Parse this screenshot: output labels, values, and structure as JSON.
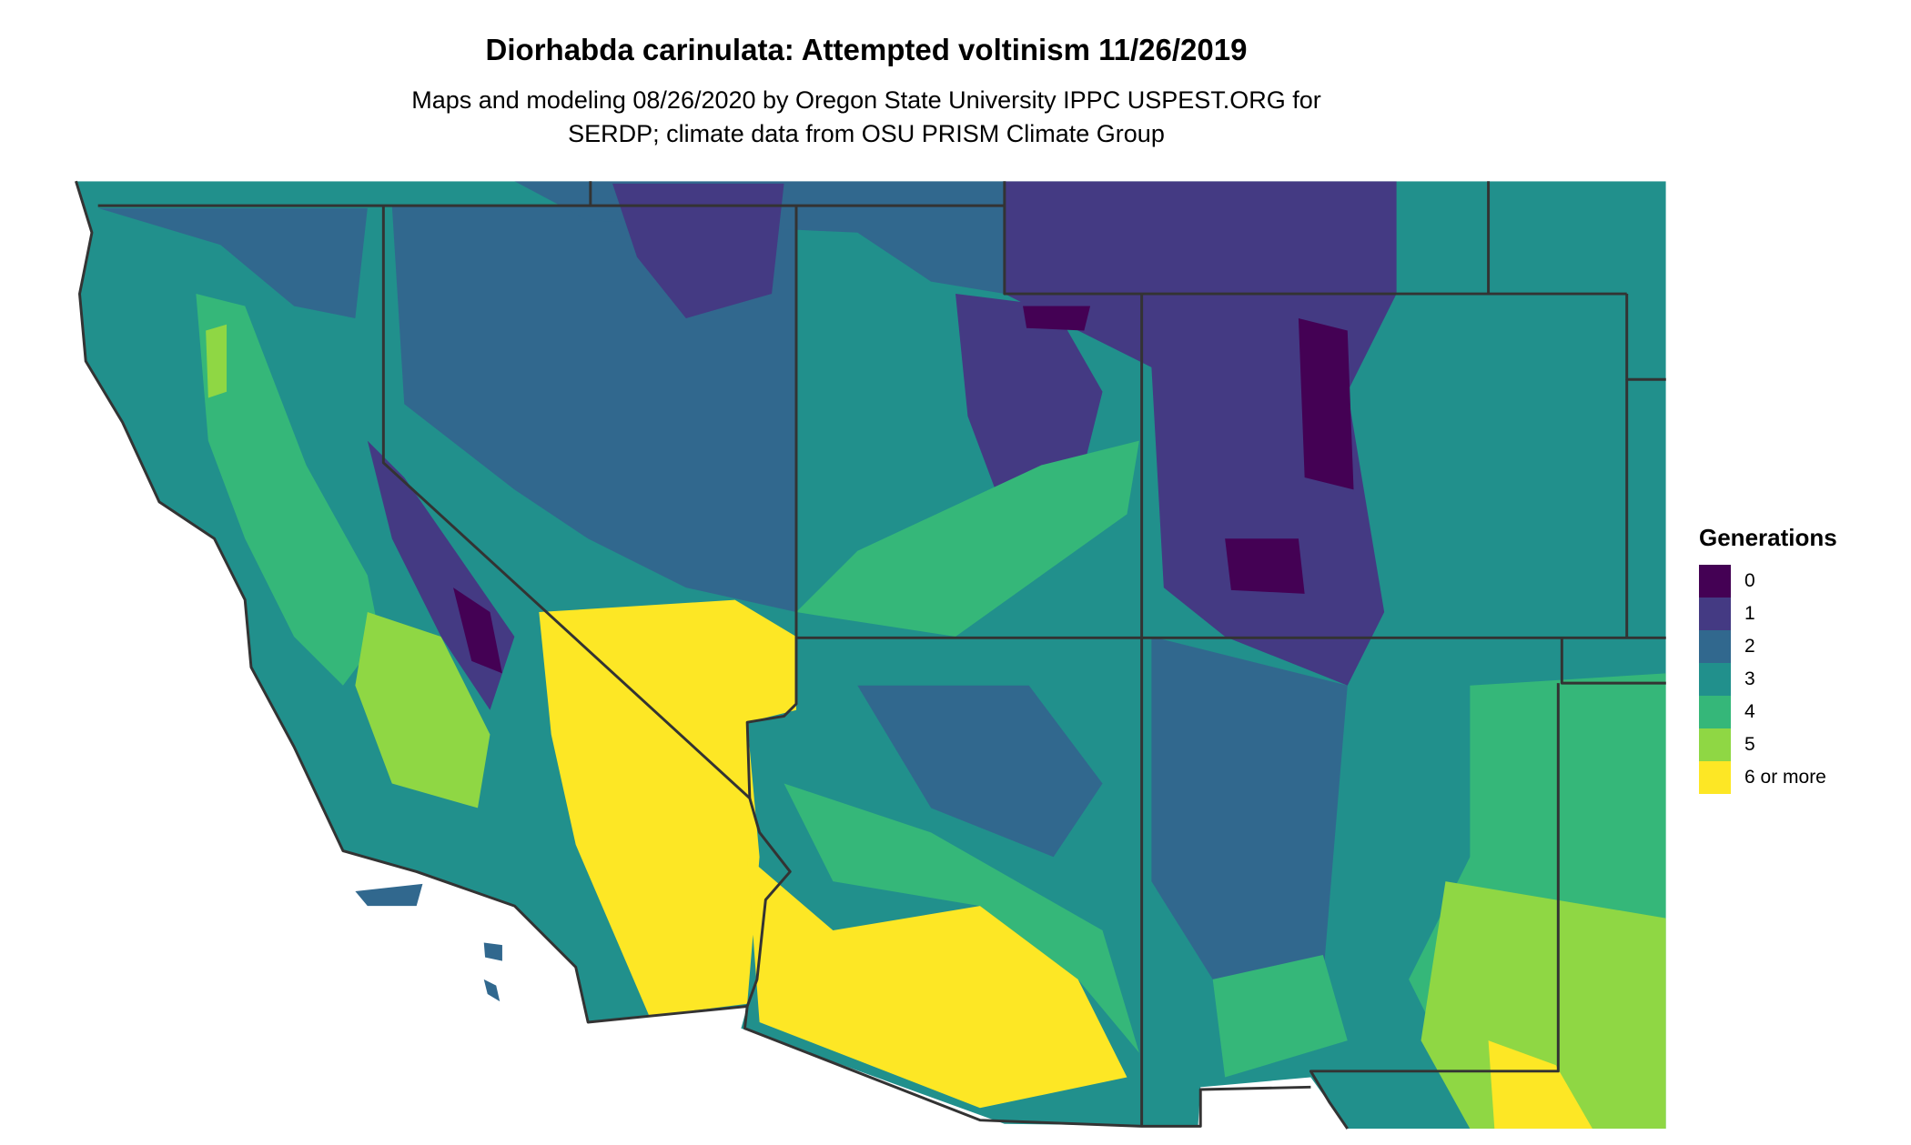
{
  "title": "Diorhabda carinulata: Attempted voltinism 11/26/2019",
  "subtitle_lines": [
    "Maps and modeling 08/26/2020 by Oregon State University IPPC USPEST.ORG for",
    "SERDP; climate data from OSU PRISM Climate Group"
  ],
  "legend": {
    "title": "Generations",
    "items": [
      {
        "label": "0",
        "color": "#440154"
      },
      {
        "label": "1",
        "color": "#443A83"
      },
      {
        "label": "2",
        "color": "#31688E"
      },
      {
        "label": "3",
        "color": "#21908C"
      },
      {
        "label": "4",
        "color": "#35B779"
      },
      {
        "label": "5",
        "color": "#8FD744"
      },
      {
        "label": "6 or more",
        "color": "#FDE725"
      }
    ]
  },
  "map": {
    "region": "Southwestern United States",
    "border_color": "#333333"
  }
}
